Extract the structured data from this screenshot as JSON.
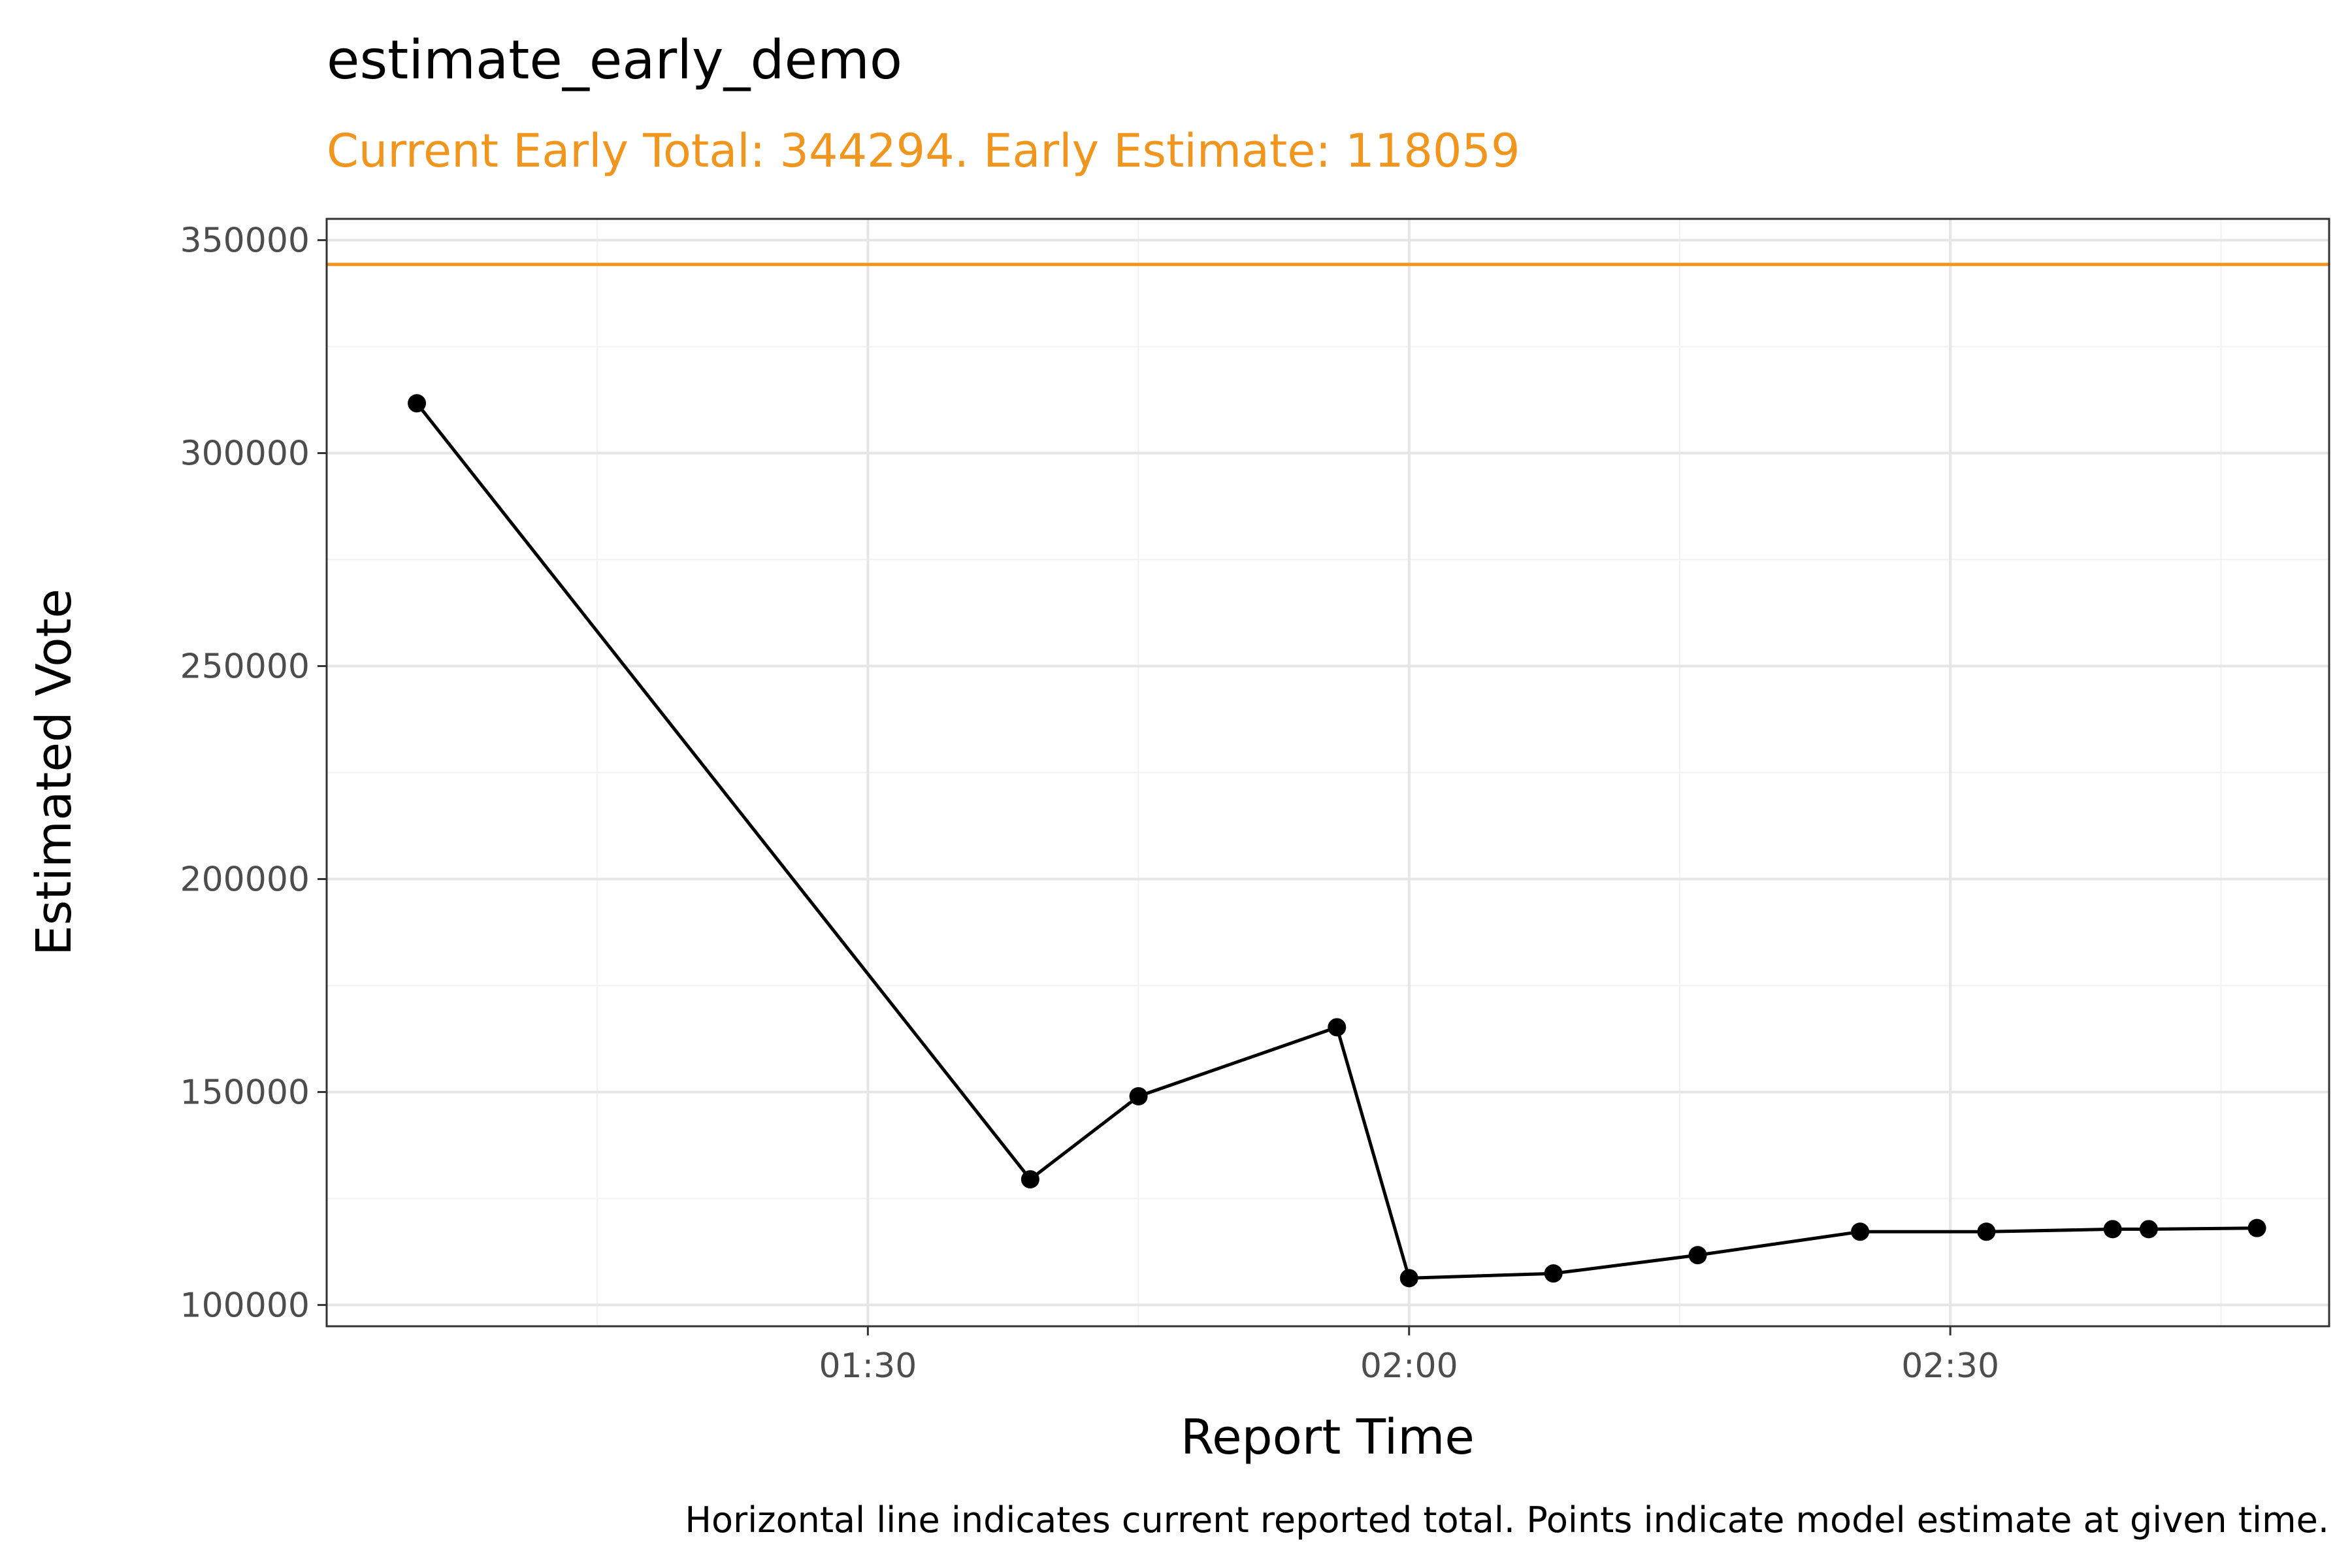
{
  "title": "estimate_early_demo",
  "subtitle": "Current Early Total: 344294. Early Estimate: 118059",
  "caption": "Horizontal line indicates current reported total. Points indicate model estimate at given time.",
  "colors": {
    "accent": "#f0961e",
    "series": "#000000",
    "grid_major": "#e6e6e6",
    "grid_minor": "#f2f2f2",
    "panel_border": "#333333"
  },
  "chart_data": {
    "type": "line",
    "xlabel": "Report Time",
    "ylabel": "Estimated Vote",
    "x_unit": "time (HH:MM)",
    "xlim": [
      "01:00",
      "02:51"
    ],
    "ylim": [
      95000,
      355000
    ],
    "x_ticks": [
      "01:30",
      "02:00",
      "02:30"
    ],
    "y_ticks": [
      100000,
      150000,
      200000,
      250000,
      300000,
      350000
    ],
    "grid": true,
    "reference_line": {
      "y": 344294,
      "color": "#f0961e"
    },
    "x": [
      "01:05",
      "01:39",
      "01:45",
      "01:56",
      "02:00",
      "02:08",
      "02:16",
      "02:25",
      "02:32",
      "02:39",
      "02:41",
      "02:47"
    ],
    "values": [
      311700,
      129500,
      149000,
      165200,
      106300,
      107400,
      111700,
      117200,
      117200,
      117800,
      117800,
      118059
    ],
    "point_color": "#000000"
  }
}
